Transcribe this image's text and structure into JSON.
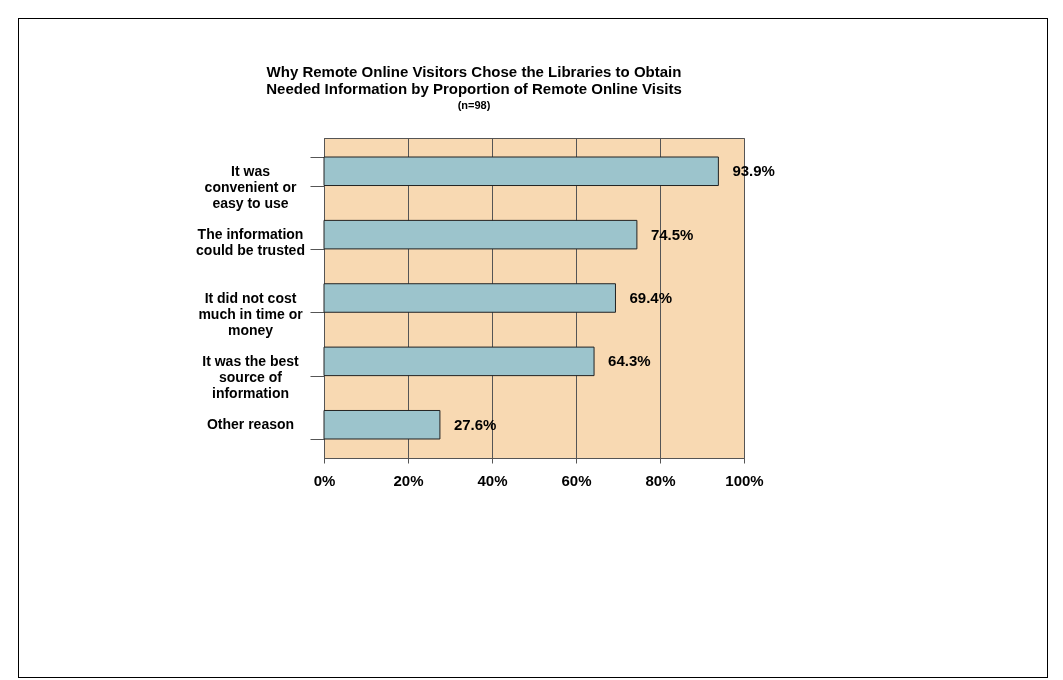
{
  "chart_data": {
    "type": "bar",
    "orientation": "horizontal",
    "title": "Why Remote Online Visitors Chose the Libraries to Obtain Needed Information by Proportion of Remote Online Visits",
    "subtitle": "(n=98)",
    "categories": [
      "It was convenient or easy to use",
      "The information could be trusted",
      "It did not cost much in time or money",
      "It was the best source of information",
      "Other reason"
    ],
    "values": [
      93.9,
      74.5,
      69.4,
      64.3,
      27.6
    ],
    "value_labels": [
      "93.9%",
      "74.5%",
      "69.4%",
      "64.3%",
      "27.6%"
    ],
    "color": "#9cc4cc",
    "xlim": [
      0,
      100
    ],
    "xticks": [
      {
        "value": 0,
        "label": "0%"
      },
      {
        "value": 20,
        "label": "20%"
      },
      {
        "value": 40,
        "label": "40%"
      },
      {
        "value": 60,
        "label": "60%"
      },
      {
        "value": 80,
        "label": "80%"
      },
      {
        "value": 100,
        "label": "100%"
      }
    ],
    "grid": "x"
  }
}
